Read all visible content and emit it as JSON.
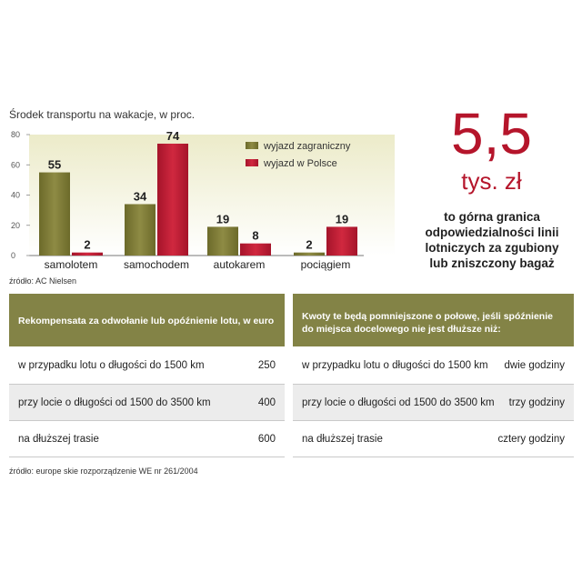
{
  "chart_data": {
    "type": "bar",
    "title": "Środek transportu na wakacje, w proc.",
    "categories": [
      "samolotem",
      "samochodem",
      "autokarem",
      "pociągiem"
    ],
    "series": [
      {
        "name": "wyjazd zagraniczny",
        "values": [
          55,
          34,
          19,
          2
        ],
        "color": "#7f7c35"
      },
      {
        "name": "wyjazd w Polsce",
        "values": [
          2,
          74,
          8,
          19
        ],
        "color": "#c31c33"
      }
    ],
    "ylim": [
      0,
      80
    ],
    "yticks": [
      0,
      20,
      40,
      60,
      80
    ],
    "legend_position": "top-right",
    "grid": false,
    "background_gradient": [
      "#ecebc9",
      "#ffffff"
    ]
  },
  "chart_source": "źródło: AC Nielsen",
  "highlight": {
    "value": "5,5",
    "unit": "tys. zł",
    "description_lines": [
      "to górna granica",
      "odpowiedzialności linii",
      "lotniczych za zgubiony",
      "lub zniszczony bagaż"
    ]
  },
  "left_table": {
    "header_lines": [
      "Rekompensata za odwołanie lub opóźnienie lotu, w euro"
    ],
    "rows": [
      {
        "label": "w przypadku lotu o długości do 1500 km",
        "value": "250"
      },
      {
        "label": "przy locie o długości od 1500 do 3500 km",
        "value": "400"
      },
      {
        "label": "na dłuższej trasie",
        "value": "600"
      }
    ]
  },
  "right_table": {
    "header_lines": [
      "Kwoty te będą pomniejszone o połowę, jeśli spóźnienie",
      "do miejsca docelowego nie jest dłuższe niż:"
    ],
    "rows": [
      {
        "label": "w przypadku lotu o długości do 1500 km",
        "value": "dwie godziny"
      },
      {
        "label": "przy locie o długości od 1500 do 3500 km",
        "value": "trzy godziny"
      },
      {
        "label": "na dłuższej trasie",
        "value": "cztery godziny"
      }
    ]
  },
  "table_source": "źródło: europe skie rozporządzenie WE nr 261/2004"
}
